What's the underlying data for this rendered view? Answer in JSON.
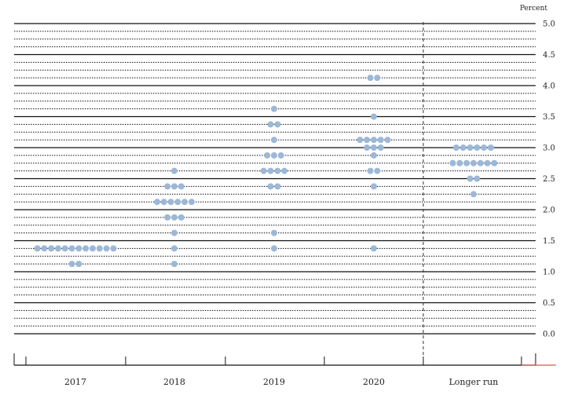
{
  "chart_data": {
    "type": "scatter",
    "ylabel": "Percent",
    "ylim": [
      0,
      5
    ],
    "yticks": [
      "0.0",
      "0.5",
      "1.0",
      "1.5",
      "2.0",
      "2.5",
      "3.0",
      "3.5",
      "4.0",
      "4.5",
      "5.0"
    ],
    "categories": [
      "2017",
      "2018",
      "2019",
      "2020",
      "Longer run"
    ],
    "dot_color": "#9db8d6",
    "grid": "solid at whole and half percents, dotted at eighths",
    "points": [
      {
        "category": "2017",
        "y": 1.375,
        "count": 12
      },
      {
        "category": "2017",
        "y": 1.125,
        "count": 2
      },
      {
        "category": "2018",
        "y": 2.625,
        "count": 1
      },
      {
        "category": "2018",
        "y": 2.375,
        "count": 3
      },
      {
        "category": "2018",
        "y": 2.125,
        "count": 6
      },
      {
        "category": "2018",
        "y": 1.875,
        "count": 3
      },
      {
        "category": "2018",
        "y": 1.625,
        "count": 1
      },
      {
        "category": "2018",
        "y": 1.375,
        "count": 1
      },
      {
        "category": "2018",
        "y": 1.125,
        "count": 1
      },
      {
        "category": "2019",
        "y": 3.625,
        "count": 1
      },
      {
        "category": "2019",
        "y": 3.375,
        "count": 2
      },
      {
        "category": "2019",
        "y": 3.125,
        "count": 1
      },
      {
        "category": "2019",
        "y": 2.875,
        "count": 3
      },
      {
        "category": "2019",
        "y": 2.625,
        "count": 4
      },
      {
        "category": "2019",
        "y": 2.375,
        "count": 2
      },
      {
        "category": "2019",
        "y": 1.625,
        "count": 1
      },
      {
        "category": "2019",
        "y": 1.375,
        "count": 1
      },
      {
        "category": "2020",
        "y": 4.125,
        "count": 2
      },
      {
        "category": "2020",
        "y": 3.5,
        "count": 1
      },
      {
        "category": "2020",
        "y": 3.125,
        "count": 5
      },
      {
        "category": "2020",
        "y": 3.0,
        "count": 3
      },
      {
        "category": "2020",
        "y": 2.875,
        "count": 1
      },
      {
        "category": "2020",
        "y": 2.625,
        "count": 2
      },
      {
        "category": "2020",
        "y": 2.375,
        "count": 1
      },
      {
        "category": "2020",
        "y": 1.375,
        "count": 1
      },
      {
        "category": "Longer run",
        "y": 3.0,
        "count": 6
      },
      {
        "category": "Longer run",
        "y": 2.75,
        "count": 7
      },
      {
        "category": "Longer run",
        "y": 2.5,
        "count": 2
      },
      {
        "category": "Longer run",
        "y": 2.25,
        "count": 1
      }
    ]
  }
}
